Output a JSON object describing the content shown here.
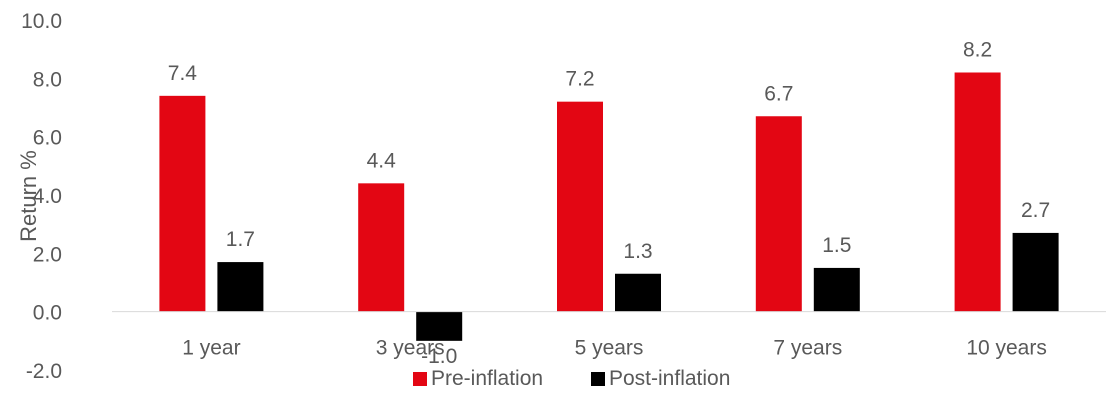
{
  "chart_data": {
    "type": "bar",
    "ylabel": "Return %",
    "ylim": [
      -2,
      10
    ],
    "yticks": [
      "10.0",
      "8.0",
      "6.0",
      "4.0",
      "2.0",
      "0.0",
      "-2.0"
    ],
    "categories": [
      "1 year",
      "3 years",
      "5 years",
      "7 years",
      "10 years"
    ],
    "series": [
      {
        "name": "Pre-inflation",
        "color": "#e30613",
        "values": [
          7.4,
          4.4,
          7.2,
          6.7,
          8.2
        ],
        "labels": [
          "7.4",
          "4.4",
          "7.2",
          "6.7",
          "8.2"
        ]
      },
      {
        "name": "Post-inflation",
        "color": "#000000",
        "values": [
          1.7,
          -1.0,
          1.3,
          1.5,
          2.7
        ],
        "labels": [
          "1.7",
          "-1.0",
          "1.3",
          "1.5",
          "2.7"
        ]
      }
    ],
    "grid": false,
    "legend": "bottom-center"
  }
}
